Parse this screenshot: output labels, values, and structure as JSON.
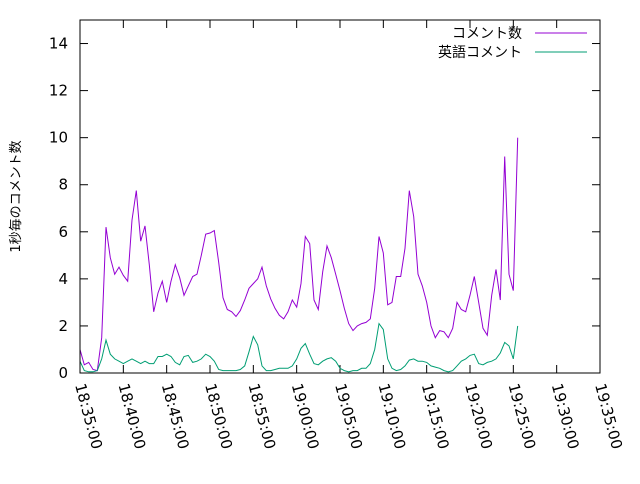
{
  "chart_data": {
    "type": "line",
    "title": "",
    "xlabel": "",
    "ylabel": "1秒毎のコメント数",
    "ylim": [
      0,
      15
    ],
    "yticks": [
      0,
      2,
      4,
      6,
      8,
      10,
      12,
      14
    ],
    "xlim": [
      "18:35:00",
      "19:35:00"
    ],
    "xticks": [
      "18:35:00",
      "18:40:00",
      "18:45:00",
      "18:50:00",
      "18:55:00",
      "19:00:00",
      "19:05:00",
      "19:10:00",
      "19:15:00",
      "19:20:00",
      "19:25:00",
      "19:30:00",
      "19:35:00"
    ],
    "grid": false,
    "legend_position": "top-right",
    "series": [
      {
        "name": "コメント数",
        "color": "#9400d3",
        "points": [
          [
            "18:35:00",
            1.0
          ],
          [
            "18:35:30",
            0.35
          ],
          [
            "18:36:00",
            0.45
          ],
          [
            "18:36:30",
            0.15
          ],
          [
            "18:37:00",
            0.1
          ],
          [
            "18:37:30",
            1.5
          ],
          [
            "18:38:00",
            6.2
          ],
          [
            "18:38:30",
            4.9
          ],
          [
            "18:39:00",
            4.2
          ],
          [
            "18:39:30",
            4.5
          ],
          [
            "18:40:00",
            4.15
          ],
          [
            "18:40:30",
            3.9
          ],
          [
            "18:41:00",
            6.5
          ],
          [
            "18:41:30",
            7.75
          ],
          [
            "18:42:00",
            5.6
          ],
          [
            "18:42:30",
            6.25
          ],
          [
            "18:43:00",
            4.6
          ],
          [
            "18:43:30",
            2.6
          ],
          [
            "18:44:00",
            3.4
          ],
          [
            "18:44:30",
            3.9
          ],
          [
            "18:45:00",
            3.0
          ],
          [
            "18:45:30",
            3.9
          ],
          [
            "18:46:00",
            4.6
          ],
          [
            "18:46:30",
            4.05
          ],
          [
            "18:47:00",
            3.3
          ],
          [
            "18:47:30",
            3.7
          ],
          [
            "18:48:00",
            4.1
          ],
          [
            "18:48:30",
            4.2
          ],
          [
            "18:49:00",
            5.0
          ],
          [
            "18:49:30",
            5.9
          ],
          [
            "18:50:00",
            5.95
          ],
          [
            "18:50:30",
            6.05
          ],
          [
            "18:51:00",
            4.7
          ],
          [
            "18:51:30",
            3.2
          ],
          [
            "18:52:00",
            2.7
          ],
          [
            "18:52:30",
            2.6
          ],
          [
            "18:53:00",
            2.4
          ],
          [
            "18:53:30",
            2.65
          ],
          [
            "18:54:00",
            3.1
          ],
          [
            "18:54:30",
            3.6
          ],
          [
            "18:55:00",
            3.8
          ],
          [
            "18:55:30",
            4.0
          ],
          [
            "18:56:00",
            4.5
          ],
          [
            "18:56:30",
            3.7
          ],
          [
            "18:57:00",
            3.15
          ],
          [
            "18:57:30",
            2.75
          ],
          [
            "18:58:00",
            2.45
          ],
          [
            "18:58:30",
            2.3
          ],
          [
            "18:59:00",
            2.6
          ],
          [
            "18:59:30",
            3.1
          ],
          [
            "19:00:00",
            2.8
          ],
          [
            "19:00:30",
            3.8
          ],
          [
            "19:01:00",
            5.8
          ],
          [
            "19:01:30",
            5.5
          ],
          [
            "19:02:00",
            3.1
          ],
          [
            "19:02:30",
            2.7
          ],
          [
            "19:03:00",
            4.3
          ],
          [
            "19:03:30",
            5.4
          ],
          [
            "19:04:00",
            4.9
          ],
          [
            "19:04:30",
            4.2
          ],
          [
            "19:05:00",
            3.5
          ],
          [
            "19:05:30",
            2.75
          ],
          [
            "19:06:00",
            2.1
          ],
          [
            "19:06:30",
            1.8
          ],
          [
            "19:07:00",
            2.0
          ],
          [
            "19:07:30",
            2.1
          ],
          [
            "19:08:00",
            2.15
          ],
          [
            "19:08:30",
            2.3
          ],
          [
            "19:09:00",
            3.6
          ],
          [
            "19:09:30",
            5.8
          ],
          [
            "19:10:00",
            5.1
          ],
          [
            "19:10:30",
            2.9
          ],
          [
            "19:11:00",
            3.0
          ],
          [
            "19:11:30",
            4.1
          ],
          [
            "19:12:00",
            4.1
          ],
          [
            "19:12:30",
            5.3
          ],
          [
            "19:13:00",
            7.75
          ],
          [
            "19:13:30",
            6.65
          ],
          [
            "19:14:00",
            4.2
          ],
          [
            "19:14:30",
            3.7
          ],
          [
            "19:15:00",
            3.0
          ],
          [
            "19:15:30",
            2.0
          ],
          [
            "19:16:00",
            1.5
          ],
          [
            "19:16:30",
            1.8
          ],
          [
            "19:17:00",
            1.75
          ],
          [
            "19:17:30",
            1.5
          ],
          [
            "19:18:00",
            1.9
          ],
          [
            "19:18:30",
            3.0
          ],
          [
            "19:19:00",
            2.7
          ],
          [
            "19:19:30",
            2.6
          ],
          [
            "19:20:00",
            3.3
          ],
          [
            "19:20:30",
            4.1
          ],
          [
            "19:21:00",
            3.0
          ],
          [
            "19:21:30",
            1.9
          ],
          [
            "19:22:00",
            1.6
          ],
          [
            "19:22:30",
            3.3
          ],
          [
            "19:23:00",
            4.4
          ],
          [
            "19:23:30",
            3.1
          ],
          [
            "19:24:00",
            9.2
          ],
          [
            "19:24:30",
            4.2
          ],
          [
            "19:25:00",
            3.5
          ],
          [
            "19:25:30",
            10.0
          ]
        ]
      },
      {
        "name": "英語コメント",
        "color": "#009e73",
        "points": [
          [
            "18:35:00",
            0.5
          ],
          [
            "18:35:30",
            0.1
          ],
          [
            "18:36:00",
            0.05
          ],
          [
            "18:36:30",
            0.05
          ],
          [
            "18:37:00",
            0.1
          ],
          [
            "18:37:30",
            0.6
          ],
          [
            "18:38:00",
            1.4
          ],
          [
            "18:38:30",
            0.8
          ],
          [
            "18:39:00",
            0.6
          ],
          [
            "18:39:30",
            0.5
          ],
          [
            "18:40:00",
            0.4
          ],
          [
            "18:40:30",
            0.5
          ],
          [
            "18:41:00",
            0.6
          ],
          [
            "18:41:30",
            0.5
          ],
          [
            "18:42:00",
            0.4
          ],
          [
            "18:42:30",
            0.5
          ],
          [
            "18:43:00",
            0.4
          ],
          [
            "18:43:30",
            0.4
          ],
          [
            "18:44:00",
            0.7
          ],
          [
            "18:44:30",
            0.7
          ],
          [
            "18:45:00",
            0.8
          ],
          [
            "18:45:30",
            0.7
          ],
          [
            "18:46:00",
            0.45
          ],
          [
            "18:46:30",
            0.35
          ],
          [
            "18:47:00",
            0.7
          ],
          [
            "18:47:30",
            0.75
          ],
          [
            "18:48:00",
            0.45
          ],
          [
            "18:48:30",
            0.5
          ],
          [
            "18:49:00",
            0.6
          ],
          [
            "18:49:30",
            0.8
          ],
          [
            "18:50:00",
            0.7
          ],
          [
            "18:50:30",
            0.5
          ],
          [
            "18:51:00",
            0.15
          ],
          [
            "18:51:30",
            0.1
          ],
          [
            "18:52:00",
            0.1
          ],
          [
            "18:52:30",
            0.1
          ],
          [
            "18:53:00",
            0.1
          ],
          [
            "18:53:30",
            0.15
          ],
          [
            "18:54:00",
            0.3
          ],
          [
            "18:54:30",
            0.9
          ],
          [
            "18:55:00",
            1.55
          ],
          [
            "18:55:30",
            1.2
          ],
          [
            "18:56:00",
            0.3
          ],
          [
            "18:56:30",
            0.1
          ],
          [
            "18:57:00",
            0.1
          ],
          [
            "18:57:30",
            0.15
          ],
          [
            "18:58:00",
            0.2
          ],
          [
            "18:58:30",
            0.2
          ],
          [
            "18:59:00",
            0.2
          ],
          [
            "18:59:30",
            0.3
          ],
          [
            "19:00:00",
            0.6
          ],
          [
            "19:00:30",
            1.05
          ],
          [
            "19:01:00",
            1.25
          ],
          [
            "19:01:30",
            0.8
          ],
          [
            "19:02:00",
            0.4
          ],
          [
            "19:02:30",
            0.35
          ],
          [
            "19:03:00",
            0.5
          ],
          [
            "19:03:30",
            0.6
          ],
          [
            "19:04:00",
            0.65
          ],
          [
            "19:04:30",
            0.5
          ],
          [
            "19:05:00",
            0.2
          ],
          [
            "19:05:30",
            0.1
          ],
          [
            "19:06:00",
            0.05
          ],
          [
            "19:06:30",
            0.1
          ],
          [
            "19:07:00",
            0.1
          ],
          [
            "19:07:30",
            0.2
          ],
          [
            "19:08:00",
            0.2
          ],
          [
            "19:08:30",
            0.4
          ],
          [
            "19:09:00",
            1.0
          ],
          [
            "19:09:30",
            2.1
          ],
          [
            "19:10:00",
            1.85
          ],
          [
            "19:10:30",
            0.6
          ],
          [
            "19:11:00",
            0.2
          ],
          [
            "19:11:30",
            0.1
          ],
          [
            "19:12:00",
            0.15
          ],
          [
            "19:12:30",
            0.3
          ],
          [
            "19:13:00",
            0.55
          ],
          [
            "19:13:30",
            0.6
          ],
          [
            "19:14:00",
            0.5
          ],
          [
            "19:14:30",
            0.5
          ],
          [
            "19:15:00",
            0.45
          ],
          [
            "19:15:30",
            0.3
          ],
          [
            "19:16:00",
            0.25
          ],
          [
            "19:16:30",
            0.2
          ],
          [
            "19:17:00",
            0.1
          ],
          [
            "19:17:30",
            0.05
          ],
          [
            "19:18:00",
            0.1
          ],
          [
            "19:18:30",
            0.3
          ],
          [
            "19:19:00",
            0.5
          ],
          [
            "19:19:30",
            0.6
          ],
          [
            "19:20:00",
            0.75
          ],
          [
            "19:20:30",
            0.8
          ],
          [
            "19:21:00",
            0.4
          ],
          [
            "19:21:30",
            0.35
          ],
          [
            "19:22:00",
            0.45
          ],
          [
            "19:22:30",
            0.5
          ],
          [
            "19:23:00",
            0.6
          ],
          [
            "19:23:30",
            0.85
          ],
          [
            "19:24:00",
            1.3
          ],
          [
            "19:24:30",
            1.15
          ],
          [
            "19:25:00",
            0.6
          ],
          [
            "19:25:30",
            2.0
          ]
        ]
      }
    ]
  }
}
